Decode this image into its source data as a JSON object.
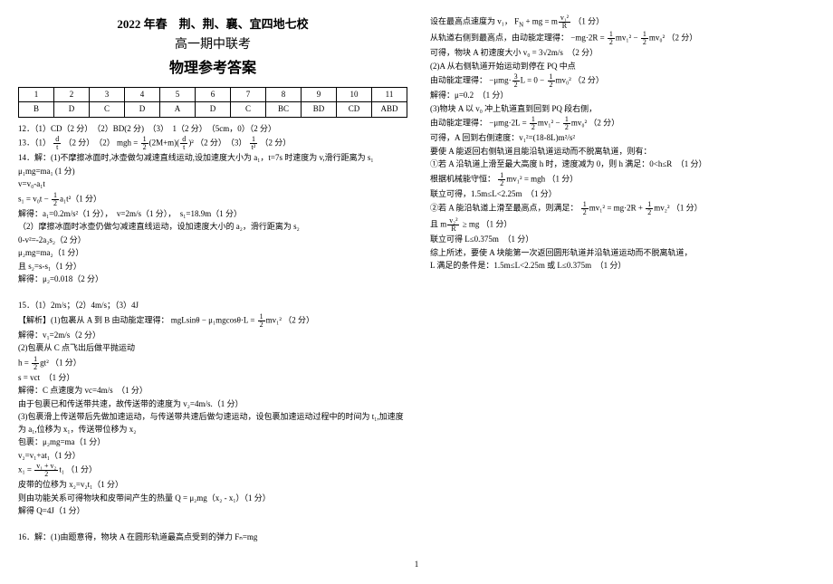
{
  "header": {
    "line1": "2022 年春　荆、荆、襄、宜四地七校",
    "line2": "高一期中联考",
    "line3": "物理参考答案"
  },
  "table": {
    "nums": [
      "1",
      "2",
      "3",
      "4",
      "5",
      "6",
      "7",
      "8",
      "9",
      "10",
      "11"
    ],
    "ans": [
      "B",
      "D",
      "C",
      "D",
      "A",
      "D",
      "C",
      "BC",
      "BD",
      "CD",
      "ABD"
    ]
  },
  "left": {
    "l12": "12．（1）CD（2 分）　（2）BD(2 分)　（3）　1（2 分）　（5cm，0）（2 分）",
    "l13a": "13．（1）",
    "l13b": "（2 分）　（2）",
    "l13c": "（2 分）　（3）",
    "l13d": "（2 分）",
    "l14a": "14．解：(1)不摩擦冰面时,冰壶做匀减速直线运动,设加速度大小为 a₁，t=7s 时速度为 v,滑行距离为 s₁",
    "l14b": "μ₁mg=ma₁ (1 分)",
    "l14c": "v=v₀-a₁t",
    "l14d": "解得：a₁=0.2m/s²（1 分），　v=2m/s（1 分），　s₁=18.9m（1 分）",
    "l14e": "（2）摩擦冰面时冰壶仍做匀减速直线运动，设加速度大小的 a₂，滑行距离为 s₂",
    "l14f": "0-v²=-2a₂s₂（2 分）",
    "l14g": "μ₂mg=ma₂（1 分）",
    "l14h": "且 s₂=s-s₁（1 分）",
    "l14i": "解得：μ₂=0.018（2 分）",
    "l15a": "15．（1）2m/s；（2）4m/s；（3）4J",
    "l15b_pre": "【解析】(1)包裹从 A 到 B 由动能定理得：",
    "l15b_suf": "（2 分）",
    "l15c": "解得：v₁=2m/s（2 分）",
    "l15d": "(2)包裹从 C 点飞出后做平抛运动",
    "l15e_suf": "（1 分）",
    "l15f": "s = vct　（1 分）",
    "l15g": "解得：C 点速度为 vc=4m/s　（1 分）",
    "l15h": "由于包裹已和传送带共速，故传送带的速度为 v₂=4m/s.（1 分）",
    "l15i": "(3)包裹滑上传送带后先做加速运动，与传送带共速后做匀速运动，设包裹加速运动过程中的时间为 t₁,加速度为 a₁,位移为 x₁，传送带位移为 x₂",
    "l15j": "包裹：μ₂mg=ma（1 分）",
    "l15k": "v₂=v₁+at₁（1 分）",
    "l15l_suf": "（1 分）",
    "l15m": "皮带的位移为 x₂=v₂t₁（1 分）",
    "l15n": "则由功能关系可得物块和皮带间产生的热量 Q = μ₂mg（x₂ - x₁）（1 分）",
    "l15o": "解得 Q=4J（1 分）",
    "l16": "16．解：(1)由题意得，物块 A 在圆形轨道最高点受到的弹力 Fₙ=mg"
  },
  "right": {
    "r1_pre": "设在最高点速度为 v₁，",
    "r1_suf": "（1 分）",
    "r2_pre": "从轨道右侧到最高点，由动能定理得：",
    "r2_suf": "（2 分）",
    "r3": "可得，物块 A 初速度大小 v₀ = 3√2m/s　（2 分）",
    "r4": "(2)A 从右侧轨道开始运动到停在 PQ 中点",
    "r5_pre": "由动能定理得：",
    "r5_suf": "（2 分）",
    "r6": "解得：μ=0.2　（1 分）",
    "r7": "(3)物块 A 以 v₀ 冲上轨道直到回到 PQ 段右侧，",
    "r8_pre": "由动能定理得：",
    "r8_suf": "（2 分）",
    "r9": "可得，A 回到右侧速度：v₁²=(18-8L)m²/s²",
    "r10": "要使 A 能返回右侧轨道且能沿轨道运动而不脱离轨道，则有：",
    "r11": "①若 A 沿轨道上滑至最大高度 h 时，速度减为 0，则 h 满足：0<h≤R　（1 分）",
    "r12_pre": "根据机械能守恒：",
    "r12_suf": "（1 分）",
    "r13": "联立可得，1.5m≤L<2.25m　（1 分）",
    "r14_pre": "②若 A 能沿轨道上滑至最高点，则满足：",
    "r14_suf": "（1 分）",
    "r15_pre": "且",
    "r15_suf": "（1 分）",
    "r16": "联立可得 L≤0.375m　（1 分）",
    "r17": "综上所述，要使 A 块能第一次返回圆形轨道并沿轨道运动而不脱离轨道，",
    "r18": "L 满足的条件是：1.5m≤L<2.25m 或 L≤0.375m　（1 分）"
  },
  "pagenum": "1"
}
